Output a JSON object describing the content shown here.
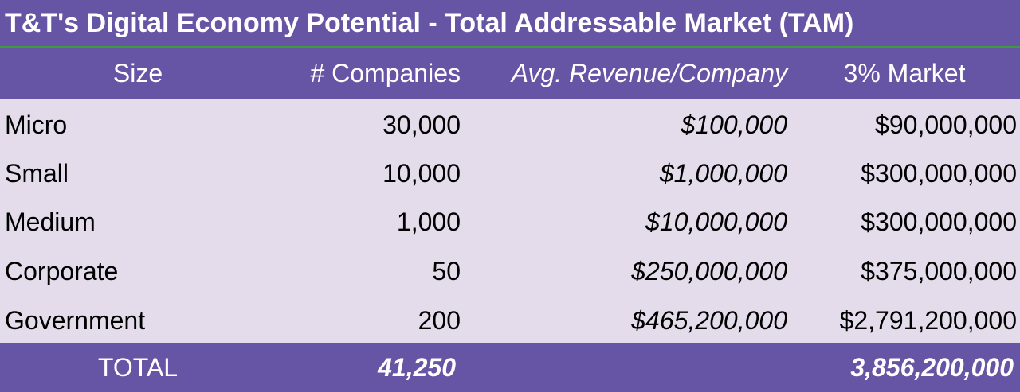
{
  "title": "T&T's Digital Economy Potential - Total Addressable Market (TAM)",
  "headers": {
    "size": "Size",
    "companies": "# Companies",
    "avg_revenue": "Avg. Revenue/Company",
    "market": "3% Market"
  },
  "rows": [
    {
      "size": "Micro",
      "companies": "30,000",
      "avg_revenue": "$100,000",
      "market": "$90,000,000"
    },
    {
      "size": "Small",
      "companies": "10,000",
      "avg_revenue": "$1,000,000",
      "market": "$300,000,000"
    },
    {
      "size": "Medium",
      "companies": "1,000",
      "avg_revenue": "$10,000,000",
      "market": "$300,000,000"
    },
    {
      "size": "Corporate",
      "companies": "50",
      "avg_revenue": "$250,000,000",
      "market": "$375,000,000"
    },
    {
      "size": "Government",
      "companies": "200",
      "avg_revenue": "$465,200,000",
      "market": "$2,791,200,000"
    }
  ],
  "total": {
    "label": "TOTAL",
    "companies": "41,250",
    "market": "3,856,200,000"
  },
  "colors": {
    "header_bg": "#6654A4",
    "body_bg": "#E4DCEA",
    "title_underline": "#3E9A3E"
  }
}
